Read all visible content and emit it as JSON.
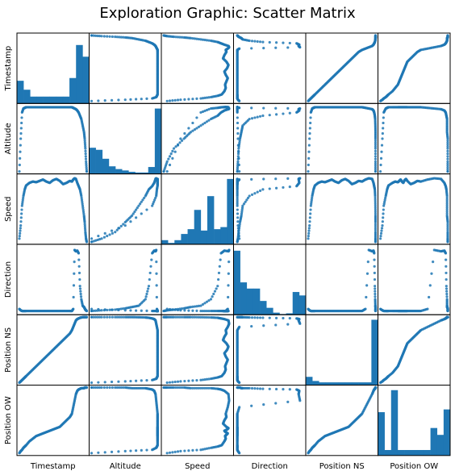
{
  "chart_data": {
    "type": "scatter_matrix",
    "title": "Exploration Graphic: Scatter Matrix",
    "variables": [
      "Timestamp",
      "Altitude",
      "Speed",
      "Direction",
      "Position NS",
      "Position OW"
    ],
    "color": "#1f77b4",
    "grid": false,
    "diagonal": "histogram",
    "histograms": [
      [
        0.33,
        0.2,
        0.1,
        0.1,
        0.1,
        0.1,
        0.1,
        0.1,
        0.37,
        0.85,
        0.68
      ],
      [
        0.38,
        0.35,
        0.22,
        0.11,
        0.07,
        0.05,
        0.03,
        0.02,
        0.02,
        0.1,
        0.95
      ],
      [
        0.06,
        0.02,
        0.06,
        0.15,
        0.22,
        0.5,
        0.2,
        0.7,
        0.22,
        0.25,
        0.95
      ],
      [
        0.93,
        0.47,
        0.38,
        0.38,
        0.2,
        0.1,
        0.03,
        0.01,
        0.02,
        0.33,
        0.28
      ],
      [
        0.12,
        0.06,
        0.04,
        0.04,
        0.04,
        0.04,
        0.04,
        0.04,
        0.04,
        0.04,
        0.95
      ],
      [
        0.63,
        0.08,
        0.95,
        0.08,
        0.08,
        0.08,
        0.08,
        0.08,
        0.4,
        0.3,
        0.67
      ]
    ],
    "series": {
      "Timestamp": [
        0.0,
        0.02,
        0.04,
        0.06,
        0.08,
        0.1,
        0.15,
        0.2,
        0.25,
        0.3,
        0.35,
        0.4,
        0.45,
        0.5,
        0.55,
        0.6,
        0.65,
        0.7,
        0.75,
        0.78,
        0.8,
        0.82,
        0.84,
        0.86,
        0.88,
        0.9,
        0.92,
        0.94,
        0.96,
        0.97,
        0.98,
        0.99,
        1.0
      ],
      "Altitude": [
        0.0,
        0.5,
        0.9,
        0.96,
        0.97,
        0.98,
        0.98,
        0.98,
        0.98,
        0.98,
        0.98,
        0.98,
        0.98,
        0.98,
        0.98,
        0.98,
        0.98,
        0.98,
        0.98,
        0.98,
        0.97,
        0.96,
        0.95,
        0.93,
        0.9,
        0.85,
        0.8,
        0.7,
        0.6,
        0.5,
        0.35,
        0.15,
        0.0
      ],
      "Speed": [
        0.05,
        0.25,
        0.55,
        0.7,
        0.8,
        0.86,
        0.9,
        0.92,
        0.91,
        0.93,
        0.95,
        0.92,
        0.9,
        0.94,
        0.96,
        0.93,
        0.88,
        0.9,
        0.93,
        0.92,
        0.95,
        0.97,
        0.96,
        0.9,
        0.85,
        0.8,
        0.7,
        0.55,
        0.4,
        0.3,
        0.15,
        0.05,
        0.0
      ],
      "Direction": [
        0.05,
        0.03,
        0.02,
        0.02,
        0.02,
        0.02,
        0.02,
        0.02,
        0.02,
        0.02,
        0.02,
        0.02,
        0.02,
        0.02,
        0.02,
        0.02,
        0.02,
        0.02,
        0.02,
        0.02,
        0.05,
        0.95,
        0.93,
        0.94,
        0.9,
        0.4,
        0.2,
        0.1,
        0.08,
        0.06,
        0.04,
        0.03,
        0.02
      ],
      "Position NS": [
        0.0,
        0.02,
        0.04,
        0.06,
        0.08,
        0.1,
        0.15,
        0.2,
        0.25,
        0.3,
        0.35,
        0.4,
        0.45,
        0.5,
        0.55,
        0.6,
        0.65,
        0.7,
        0.75,
        0.8,
        0.85,
        0.9,
        0.95,
        0.97,
        0.98,
        0.99,
        0.995,
        0.998,
        1.0,
        1.0,
        1.0,
        1.0,
        1.0
      ],
      "Position OW": [
        0.0,
        0.03,
        0.05,
        0.08,
        0.1,
        0.12,
        0.18,
        0.22,
        0.26,
        0.28,
        0.3,
        0.32,
        0.34,
        0.36,
        0.38,
        0.4,
        0.45,
        0.5,
        0.55,
        0.6,
        0.7,
        0.8,
        0.9,
        0.95,
        0.97,
        0.98,
        0.99,
        0.99,
        0.99,
        1.0,
        1.0,
        1.0,
        1.0
      ]
    }
  }
}
